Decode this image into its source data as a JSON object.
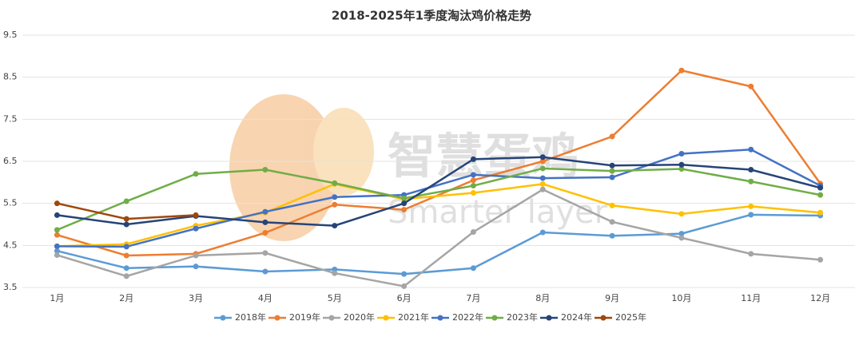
{
  "chart_data": {
    "type": "line",
    "title": "2018-2025年1季度淘汰鸡价格走势",
    "watermark": [
      "智慧蛋鸡",
      "Smarter layer"
    ],
    "categories": [
      "1月",
      "2月",
      "3月",
      "4月",
      "5月",
      "6月",
      "7月",
      "8月",
      "9月",
      "10月",
      "11月",
      "12月"
    ],
    "ylim": [
      3.5,
      9.5
    ],
    "yticks": [
      3.5,
      4.5,
      5.5,
      6.5,
      7.5,
      8.5,
      9.5
    ],
    "grid": true,
    "legend": "bottom",
    "series": [
      {
        "name": "2018年",
        "color": "#5b9bd5",
        "values": [
          4.37,
          3.96,
          4.0,
          3.88,
          3.93,
          3.82,
          3.96,
          4.81,
          4.73,
          4.78,
          5.23,
          5.21
        ]
      },
      {
        "name": "2019年",
        "color": "#ed7d31",
        "values": [
          4.75,
          4.26,
          4.3,
          4.8,
          5.47,
          5.35,
          6.05,
          6.5,
          7.09,
          8.66,
          8.28,
          5.97
        ]
      },
      {
        "name": "2020年",
        "color": "#a5a5a5",
        "values": [
          4.27,
          3.77,
          4.26,
          4.32,
          3.84,
          3.53,
          4.82,
          5.83,
          5.06,
          4.68,
          4.3,
          4.16
        ]
      },
      {
        "name": "2021年",
        "color": "#ffc000",
        "values": [
          4.48,
          4.53,
          4.97,
          5.28,
          5.96,
          5.6,
          5.75,
          5.96,
          5.45,
          5.25,
          5.43,
          5.28
        ]
      },
      {
        "name": "2022年",
        "color": "#4472c4",
        "values": [
          4.48,
          4.47,
          4.9,
          5.3,
          5.65,
          5.7,
          6.18,
          6.1,
          6.12,
          6.68,
          6.78,
          5.92
        ]
      },
      {
        "name": "2023年",
        "color": "#70ad47",
        "values": [
          4.87,
          5.55,
          6.2,
          6.3,
          5.98,
          5.62,
          5.92,
          6.33,
          6.27,
          6.32,
          6.02,
          5.7
        ]
      },
      {
        "name": "2024年",
        "color": "#264478",
        "values": [
          5.22,
          5.0,
          5.2,
          5.05,
          4.97,
          5.5,
          6.55,
          6.6,
          6.4,
          6.42,
          6.3,
          5.87
        ]
      },
      {
        "name": "2025年",
        "color": "#9e480e",
        "values": [
          5.5,
          5.13,
          5.22,
          null,
          null,
          null,
          null,
          null,
          null,
          null,
          null,
          null
        ]
      }
    ]
  }
}
